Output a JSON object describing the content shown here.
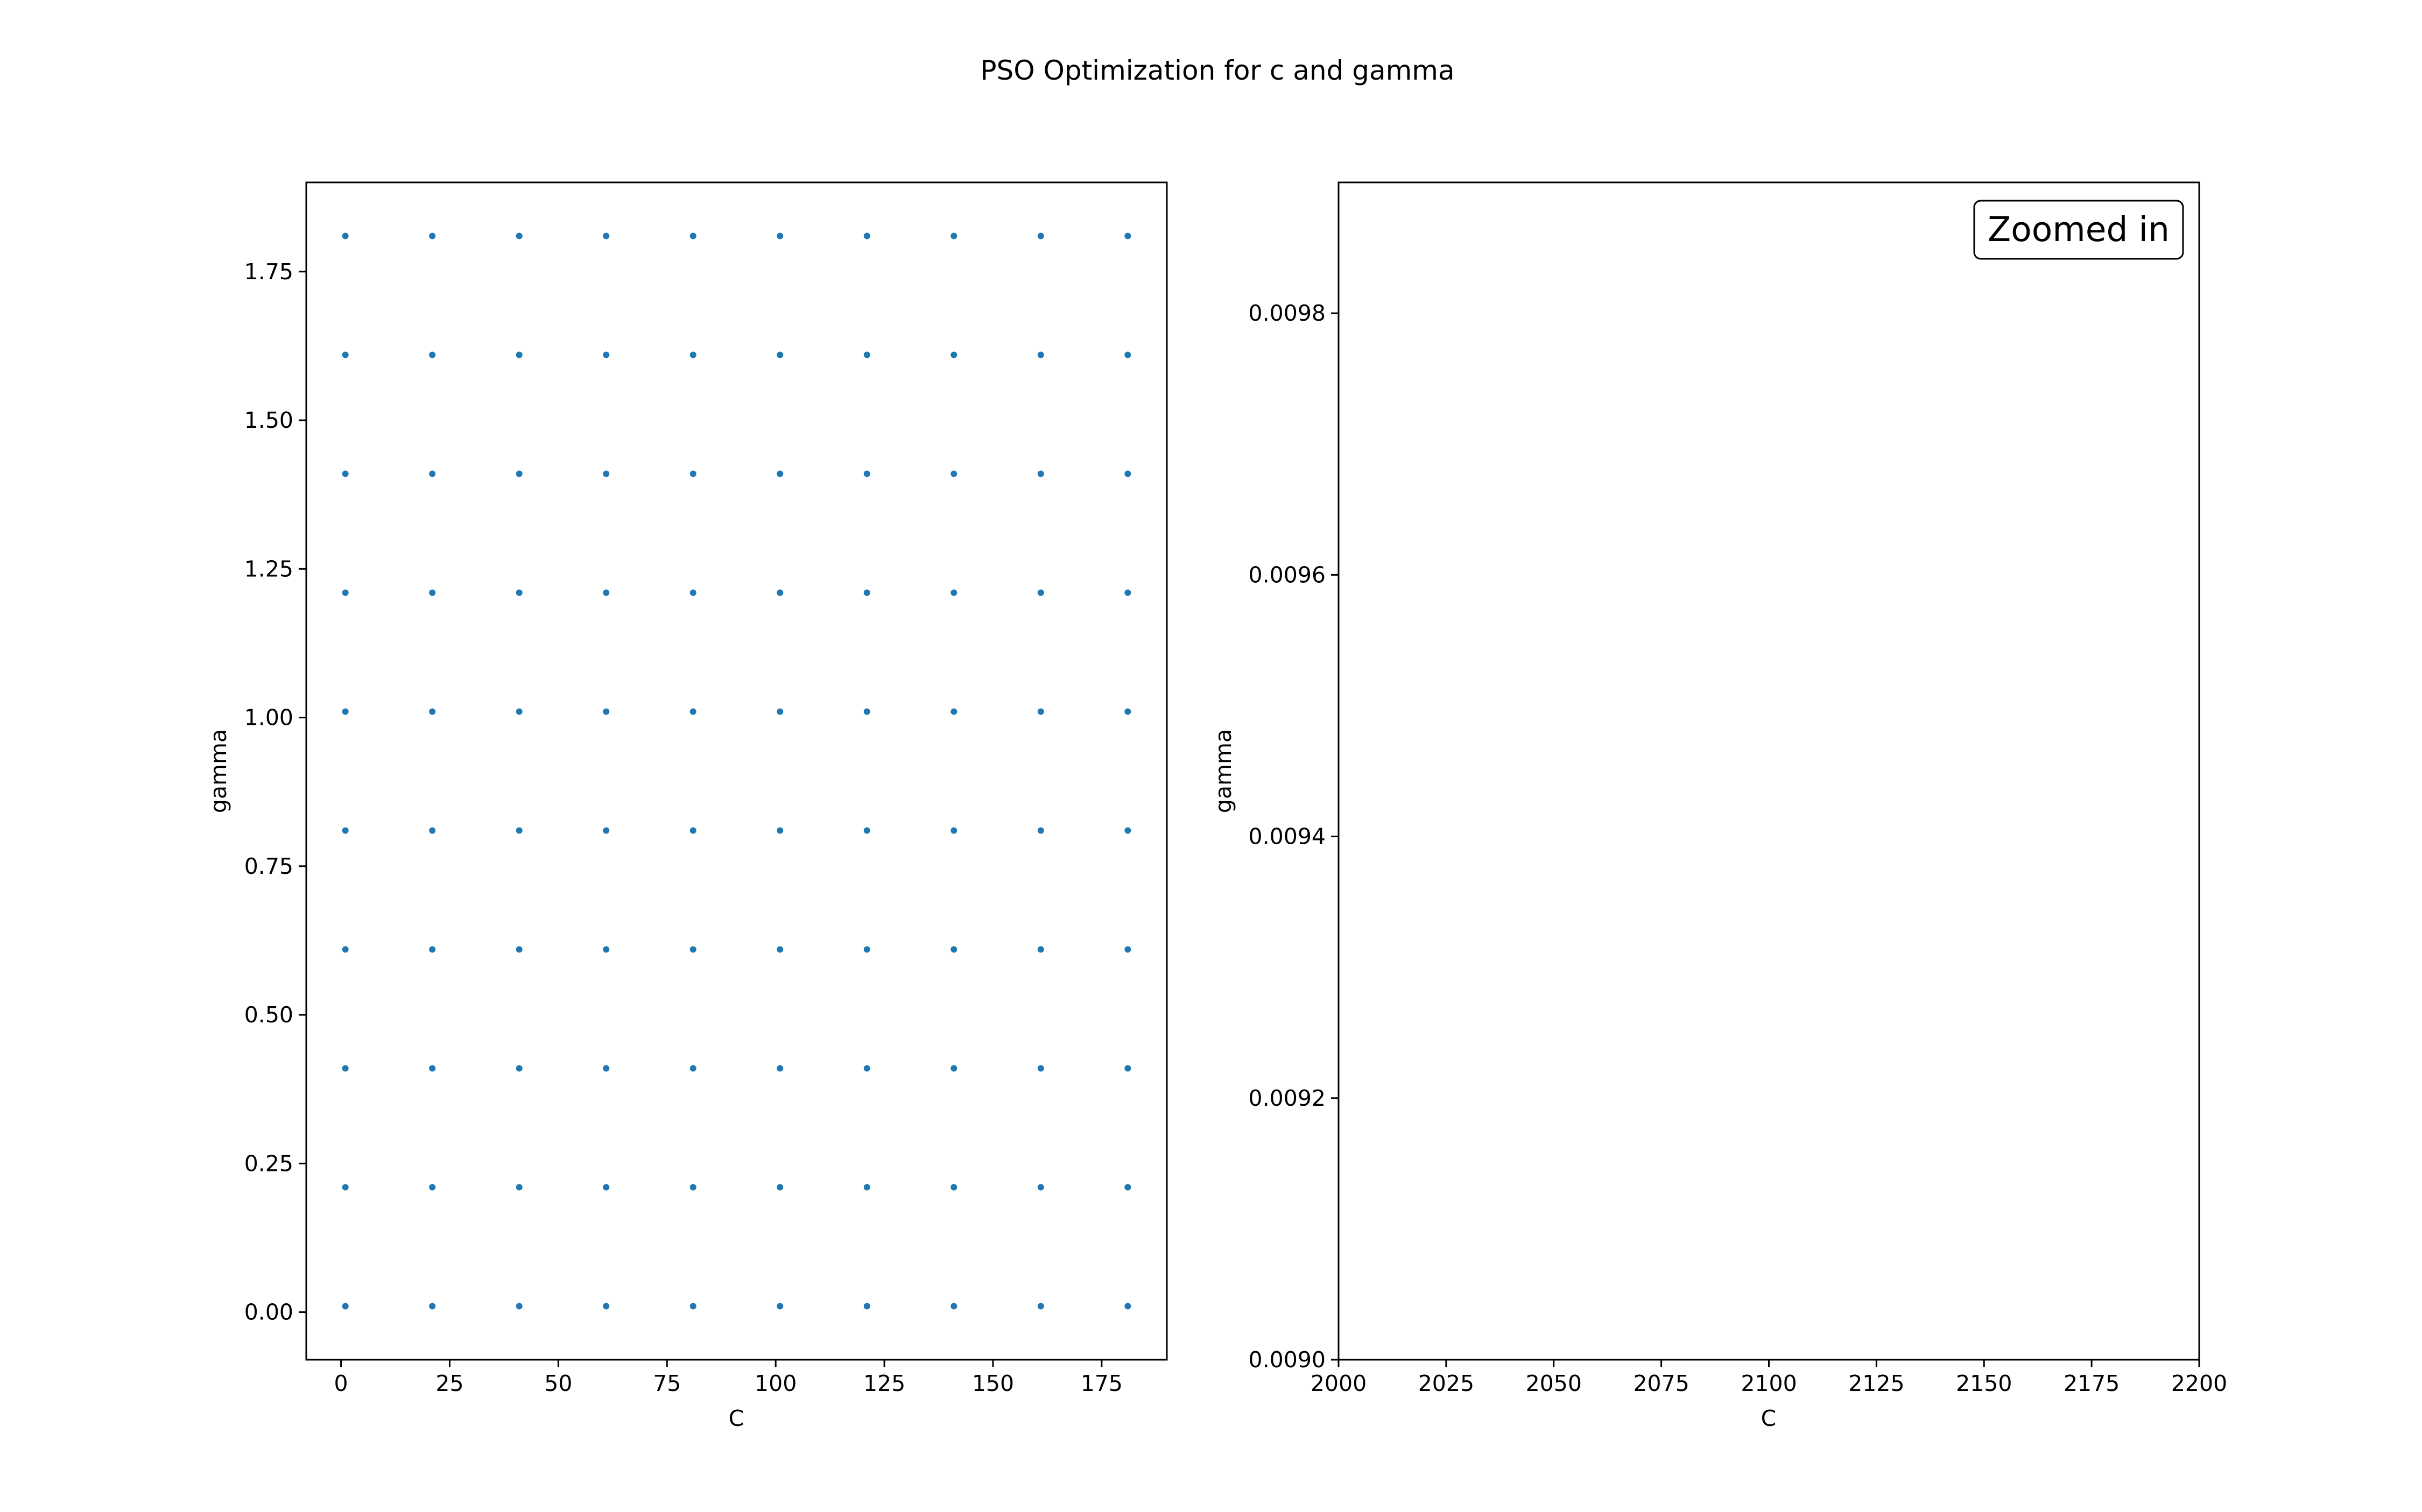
{
  "figure": {
    "title": "PSO Optimization for c and gamma"
  },
  "chart_data": [
    {
      "type": "scatter",
      "xlabel": "C",
      "ylabel": "gamma",
      "xlim": [
        -8,
        190
      ],
      "ylim": [
        -0.08,
        1.9
      ],
      "xticks": [
        0,
        25,
        50,
        75,
        100,
        125,
        150,
        175
      ],
      "xtick_labels": [
        "0",
        "25",
        "50",
        "75",
        "100",
        "125",
        "150",
        "175"
      ],
      "yticks": [
        0,
        0.25,
        0.5,
        0.75,
        1.0,
        1.25,
        1.5,
        1.75
      ],
      "ytick_labels": [
        "0.00",
        "0.25",
        "0.50",
        "0.75",
        "1.00",
        "1.25",
        "1.50",
        "1.75"
      ],
      "grid": false,
      "marker_color": "#1f77b4",
      "points_grid": {
        "x": [
          1,
          21,
          41,
          61,
          81,
          101,
          121,
          141,
          161,
          181
        ],
        "y": [
          0.01,
          0.21,
          0.41,
          0.61,
          0.81,
          1.01,
          1.21,
          1.41,
          1.61,
          1.81
        ]
      }
    },
    {
      "type": "scatter",
      "xlabel": "C",
      "ylabel": "gamma",
      "xlim": [
        2000,
        2200
      ],
      "ylim": [
        0.009,
        0.0099
      ],
      "xticks": [
        2000,
        2025,
        2050,
        2075,
        2100,
        2125,
        2150,
        2175,
        2200
      ],
      "xtick_labels": [
        "2000",
        "2025",
        "2050",
        "2075",
        "2100",
        "2125",
        "2150",
        "2175",
        "2200"
      ],
      "yticks": [
        0.009,
        0.0092,
        0.0094,
        0.0096,
        0.0098
      ],
      "ytick_labels": [
        "0.0090",
        "0.0092",
        "0.0094",
        "0.0096",
        "0.0098"
      ],
      "grid": false,
      "annotation": "Zoomed in",
      "annotation_placement": "top-right",
      "points_grid": {
        "x": [],
        "y": []
      }
    }
  ]
}
